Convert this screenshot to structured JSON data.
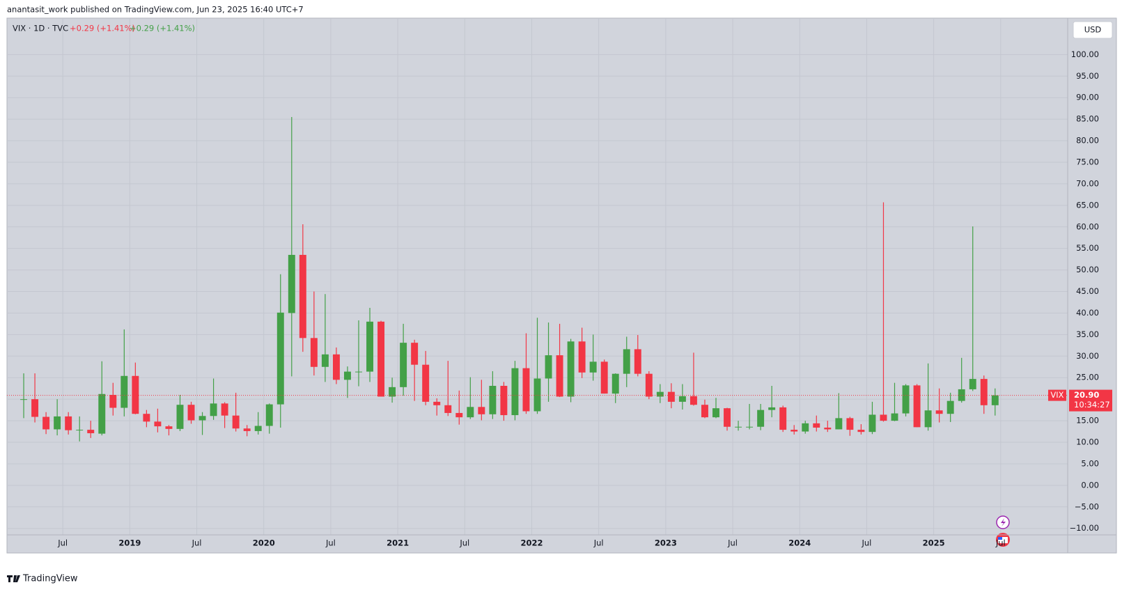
{
  "header": {
    "published": "anantasit_work published on TradingView.com, Jun 23, 2025 16:40 UTC+7"
  },
  "footer": {
    "brand": "TradingView"
  },
  "chart_data": {
    "type": "candlestick",
    "legend_symbol": "VIX · 1D · TVC",
    "change_labels": [
      "+0.29 (+1.41%)",
      "+0.29 (+1.41%)"
    ],
    "currency": "USD",
    "last_symbol": "VIX",
    "last_price": {
      "value": 20.9,
      "label": "20.90"
    },
    "countdown": "10:34:27",
    "up_color": "#43a047",
    "down_color": "#f23645",
    "grid": true,
    "x": [
      "2018-03",
      "2018-04",
      "2018-05",
      "2018-06",
      "2018-07",
      "2018-08",
      "2018-09",
      "2018-10",
      "2018-11",
      "2018-12",
      "2019-01",
      "2019-02",
      "2019-03",
      "2019-04",
      "2019-05",
      "2019-06",
      "2019-07",
      "2019-08",
      "2019-09",
      "2019-10",
      "2019-11",
      "2019-12",
      "2020-01",
      "2020-02",
      "2020-03",
      "2020-04",
      "2020-05",
      "2020-06",
      "2020-07",
      "2020-08",
      "2020-09",
      "2020-10",
      "2020-11",
      "2020-12",
      "2021-01",
      "2021-02",
      "2021-03",
      "2021-04",
      "2021-05",
      "2021-06",
      "2021-07",
      "2021-08",
      "2021-09",
      "2021-10",
      "2021-11",
      "2021-12",
      "2022-01",
      "2022-02",
      "2022-03",
      "2022-04",
      "2022-05",
      "2022-06",
      "2022-07",
      "2022-08",
      "2022-09",
      "2022-10",
      "2022-11",
      "2022-12",
      "2023-01",
      "2023-02",
      "2023-03",
      "2023-04",
      "2023-05",
      "2023-06",
      "2023-07",
      "2023-08",
      "2023-09",
      "2023-10",
      "2023-11",
      "2023-12",
      "2024-01",
      "2024-02",
      "2024-03",
      "2024-04",
      "2024-05",
      "2024-06",
      "2024-07",
      "2024-08",
      "2024-09",
      "2024-10",
      "2024-11",
      "2024-12",
      "2025-01",
      "2025-02",
      "2025-03",
      "2025-04",
      "2025-05",
      "2025-06"
    ],
    "open": [
      19.9,
      20,
      15.9,
      13,
      16,
      12.8,
      12.9,
      12,
      21,
      18,
      25.4,
      16.6,
      14.8,
      13.7,
      13.1,
      18.7,
      15.1,
      16.1,
      19,
      16.2,
      13.2,
      12.6,
      13.8,
      18.8,
      40,
      53.5,
      34.2,
      27.5,
      30.4,
      24.5,
      26.4,
      26.4,
      38,
      20.6,
      22.8,
      33.1,
      28,
      19.4,
      18.6,
      16.8,
      15.8,
      18.2,
      16.5,
      23.1,
      16.3,
      27.2,
      17.2,
      24.8,
      30.2,
      20.6,
      33.4,
      26.2,
      28.7,
      21.3,
      25.9,
      31.6,
      25.9,
      20.6,
      21.7,
      19.4,
      20.7,
      18.7,
      15.8,
      17.9,
      13.6,
      13.6,
      13.6,
      17.5,
      18.1,
      12.9,
      12.5,
      14.4,
      13.4,
      13,
      15.6,
      12.9,
      12.4,
      16.4,
      15,
      16.7,
      23.2,
      13.5,
      17.4,
      16.6,
      19.6,
      22.3,
      24.7,
      18.6
    ],
    "high": [
      26,
      26,
      17,
      20,
      17,
      16,
      15,
      28.8,
      23.8,
      36.2,
      28.5,
      17.5,
      17.8,
      14,
      21,
      19.4,
      17,
      24.8,
      19.3,
      21.5,
      14,
      17,
      19,
      49,
      85.5,
      60.6,
      45,
      44.4,
      32,
      27.6,
      38.3,
      41.2,
      38.2,
      25,
      37.5,
      33.8,
      31.2,
      20.2,
      28.9,
      22,
      25.1,
      24.5,
      26.5,
      24,
      28.9,
      35.3,
      38.9,
      37.8,
      37.5,
      34,
      36.6,
      35,
      29.2,
      26,
      34.5,
      34.9,
      26.5,
      23.5,
      23.7,
      23.5,
      30.8,
      19.9,
      20.3,
      18,
      15,
      18.9,
      18.9,
      23.1,
      18.5,
      14,
      15,
      16.2,
      15,
      21.4,
      15.9,
      14.2,
      19.4,
      65.7,
      23.8,
      23.5,
      23.5,
      28.3,
      22.5,
      21.5,
      29.6,
      60.1,
      25.5,
      22.5
    ],
    "low": [
      15.6,
      14.6,
      11.9,
      11.6,
      11.8,
      10.2,
      11,
      11.6,
      16.2,
      16,
      16.5,
      13.5,
      12.3,
      11.6,
      12.6,
      14.3,
      11.7,
      15.2,
      13.3,
      12.5,
      11.4,
      11.8,
      12,
      13.4,
      25.3,
      31,
      25.5,
      24,
      23.5,
      20.3,
      23,
      24,
      21.3,
      19.2,
      20.8,
      19.6,
      18.6,
      16.2,
      16.1,
      14.1,
      15.4,
      15.1,
      15.4,
      15,
      15.1,
      16.6,
      16.6,
      19.4,
      20.5,
      19.3,
      24.9,
      24.3,
      21.3,
      19.1,
      22.8,
      25.3,
      20,
      19.1,
      17.9,
      17.6,
      18.5,
      15.6,
      15.6,
      12.7,
      12.7,
      13,
      12.8,
      15.8,
      12.4,
      11.8,
      12,
      12.5,
      12.4,
      13,
      11.5,
      11.8,
      11.9,
      14.8,
      14.9,
      16,
      13.5,
      12.7,
      14.6,
      14.7,
      19.2,
      21.9,
      16.6,
      16.2
    ],
    "close": [
      20,
      15.9,
      13,
      16,
      12.8,
      12.9,
      12.1,
      21.2,
      18,
      25.4,
      16.6,
      14.8,
      13.7,
      13.1,
      18.7,
      15.1,
      16.1,
      19,
      16.2,
      13.2,
      12.6,
      13.8,
      18.8,
      40.1,
      53.5,
      34.2,
      27.5,
      30.4,
      24.5,
      26.4,
      26.4,
      38,
      20.6,
      22.8,
      33.1,
      28,
      19.4,
      18.6,
      16.8,
      15.8,
      18.2,
      16.5,
      23.1,
      16.3,
      27.2,
      17.2,
      24.8,
      30.2,
      20.6,
      33.4,
      26.2,
      28.7,
      21.3,
      25.9,
      31.6,
      25.9,
      20.6,
      21.7,
      19.4,
      20.7,
      18.7,
      15.8,
      17.9,
      13.6,
      13.6,
      13.6,
      17.5,
      18.1,
      12.9,
      12.5,
      14.4,
      13.4,
      13,
      15.6,
      12.9,
      12.4,
      16.4,
      15,
      16.7,
      23.2,
      13.5,
      17.4,
      16.6,
      19.6,
      22.3,
      24.7,
      18.6,
      20.9
    ],
    "xlim": [
      "2018-02",
      "2025-12"
    ],
    "xticks": [
      {
        "value": "2018-07",
        "label": "Jul"
      },
      {
        "value": "2019-01",
        "label": "2019"
      },
      {
        "value": "2019-07",
        "label": "Jul"
      },
      {
        "value": "2020-01",
        "label": "2020"
      },
      {
        "value": "2020-07",
        "label": "Jul"
      },
      {
        "value": "2021-01",
        "label": "2021"
      },
      {
        "value": "2021-07",
        "label": "Jul"
      },
      {
        "value": "2022-01",
        "label": "2022"
      },
      {
        "value": "2022-07",
        "label": "Jul"
      },
      {
        "value": "2023-01",
        "label": "2023"
      },
      {
        "value": "2023-07",
        "label": "Jul"
      },
      {
        "value": "2024-01",
        "label": "2024"
      },
      {
        "value": "2024-07",
        "label": "Jul"
      },
      {
        "value": "2025-01",
        "label": "2025"
      },
      {
        "value": "2025-07",
        "label": "Jul"
      }
    ],
    "ylim": [
      -11.5,
      108.3
    ],
    "yticks": [
      {
        "value": 100,
        "label": "100.00"
      },
      {
        "value": 95,
        "label": "95.00"
      },
      {
        "value": 90,
        "label": "90.00"
      },
      {
        "value": 85,
        "label": "85.00"
      },
      {
        "value": 80,
        "label": "80.00"
      },
      {
        "value": 75,
        "label": "75.00"
      },
      {
        "value": 70,
        "label": "70.00"
      },
      {
        "value": 65,
        "label": "65.00"
      },
      {
        "value": 60,
        "label": "60.00"
      },
      {
        "value": 55,
        "label": "55.00"
      },
      {
        "value": 50,
        "label": "50.00"
      },
      {
        "value": 45,
        "label": "45.00"
      },
      {
        "value": 40,
        "label": "40.00"
      },
      {
        "value": 35,
        "label": "35.00"
      },
      {
        "value": 30,
        "label": "30.00"
      },
      {
        "value": 25,
        "label": "25.00"
      },
      {
        "value": 20,
        "label": "20.00"
      },
      {
        "value": 15,
        "label": "15.00"
      },
      {
        "value": 10,
        "label": "10.00"
      },
      {
        "value": 5,
        "label": "5.00"
      },
      {
        "value": 0,
        "label": "0.00"
      },
      {
        "value": -5,
        "label": "−5.00"
      },
      {
        "value": -10,
        "label": "−10.00"
      }
    ]
  }
}
